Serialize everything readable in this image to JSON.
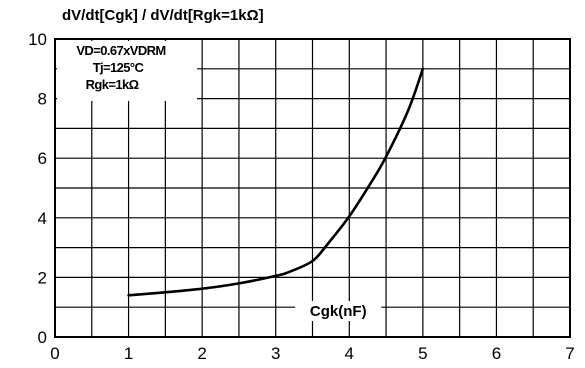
{
  "chart_data": {
    "type": "line",
    "title": "dV/dt[Cgk] / dV/dt[Rgk=1kΩ]",
    "xlabel": "Cgk(nF)",
    "ylabel": "",
    "xlim": [
      0,
      7
    ],
    "ylim": [
      0,
      10
    ],
    "x_ticks": [
      0,
      1,
      2,
      3,
      4,
      5,
      6,
      7
    ],
    "y_ticks": [
      0,
      2,
      4,
      6,
      8,
      10
    ],
    "x_minor_step": 0.5,
    "y_minor_step": 1,
    "grid": true,
    "annotations": [
      "VD=0.67xVDRM",
      "Tj=125°C",
      "Rgk=1kΩ"
    ],
    "series": [
      {
        "x": [
          1.0,
          1.5,
          2.0,
          2.5,
          3.0,
          3.2,
          3.5,
          3.7,
          4.0,
          4.3,
          4.5,
          4.8,
          5.0
        ],
        "y": [
          1.4,
          1.5,
          1.62,
          1.8,
          2.05,
          2.2,
          2.55,
          3.1,
          4.05,
          5.2,
          6.05,
          7.6,
          9.0
        ]
      }
    ]
  }
}
